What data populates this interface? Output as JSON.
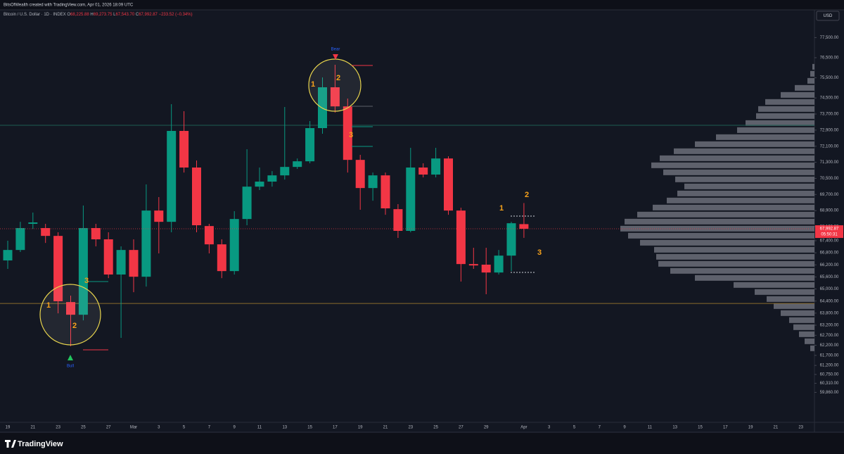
{
  "page": {
    "attribution": "BitsOfWealth created with TradingView.com, Apr 01, 2026 18:09 UTC",
    "brand": "TradingView",
    "currency": "USD"
  },
  "chart_data": {
    "type": "candlestick",
    "title": "Bitcoin / U.S. Dollar · 1D · INDEX",
    "legend_values": [
      {
        "key": "O",
        "value": "68,225.88"
      },
      {
        "key": "H",
        "value": "69,273.75"
      },
      {
        "key": "L",
        "value": "67,543.70"
      },
      {
        "key": "C",
        "value": "67,992.87"
      }
    ],
    "change": "−233.52 (−0.34%)",
    "categories": [
      "19",
      null,
      "21",
      null,
      "23",
      null,
      "25",
      null,
      "27",
      null,
      "Mar",
      null,
      "3",
      null,
      "5",
      null,
      "7",
      null,
      "9",
      null,
      "11",
      null,
      "13",
      null,
      "15",
      null,
      "17",
      null,
      "19",
      null,
      "21",
      null,
      "23",
      null,
      "25",
      null,
      "27",
      null,
      "29",
      null,
      null,
      "Apr",
      null,
      "3",
      null,
      "5",
      null,
      "7",
      null,
      "9",
      null,
      "11",
      null,
      "13",
      null,
      "15",
      null,
      "17",
      null,
      "19",
      null,
      "21",
      null,
      "23"
    ],
    "open": [
      66420,
      66940,
      68240,
      68030,
      67640,
      64350,
      63720,
      68030,
      67470,
      65720,
      66940,
      65610,
      68900,
      68340,
      72860,
      71040,
      68130,
      67220,
      65890,
      68480,
      70090,
      70340,
      70650,
      71070,
      71350,
      73000,
      75030,
      74080,
      71420,
      70020,
      70650,
      68970,
      67890,
      71040,
      70690,
      71490,
      68900,
      66240,
      66210,
      65820,
      66660,
      68225.88,
      null,
      null,
      null,
      null,
      null,
      null,
      null,
      null,
      null,
      null,
      null,
      null,
      null,
      null,
      null,
      null,
      null,
      null,
      null,
      null,
      null,
      null
    ],
    "high": [
      67400,
      68340,
      68800,
      68240,
      67820,
      64670,
      69150,
      68240,
      67820,
      67120,
      67470,
      70200,
      69570,
      74190,
      73840,
      71390,
      68240,
      67470,
      68870,
      71950,
      71040,
      70860,
      74050,
      71490,
      73350,
      75520,
      76150,
      74470,
      71670,
      70790,
      70790,
      69220,
      72020,
      71250,
      72020,
      71600,
      69040,
      67050,
      67050,
      66940,
      68340,
      69273.75,
      null,
      null,
      null,
      null,
      null,
      null,
      null,
      null,
      null,
      null,
      null,
      null,
      null,
      null,
      null,
      null,
      null,
      null,
      null,
      null,
      null,
      null
    ],
    "low": [
      66000,
      66840,
      67990,
      67290,
      63790,
      62150,
      63440,
      67120,
      65540,
      62570,
      64840,
      65120,
      66770,
      67820,
      70790,
      67820,
      66770,
      65540,
      65720,
      68170,
      69920,
      70090,
      70440,
      70970,
      71250,
      72720,
      73770,
      70790,
      68940,
      69390,
      68690,
      67540,
      67820,
      70550,
      70550,
      68690,
      65370,
      66000,
      64740,
      65720,
      65890,
      67543.7,
      null,
      null,
      null,
      null,
      null,
      null,
      null,
      null,
      null,
      null,
      null,
      null,
      null,
      null,
      null,
      null,
      null,
      null,
      null,
      null,
      null,
      null
    ],
    "close": [
      66940,
      68030,
      68310,
      67640,
      64390,
      63720,
      68030,
      67470,
      65720,
      66940,
      65610,
      68900,
      68340,
      72860,
      71040,
      68170,
      67220,
      65890,
      68480,
      70090,
      70340,
      70650,
      71070,
      71350,
      73000,
      75030,
      74080,
      71420,
      70020,
      70650,
      69010,
      67890,
      71040,
      70690,
      71490,
      68900,
      66240,
      66170,
      65820,
      66660,
      68270,
      67992.87,
      null,
      null,
      null,
      null,
      null,
      null,
      null,
      null,
      null,
      null,
      null,
      null,
      null,
      null,
      null,
      null,
      null,
      null,
      null,
      null,
      null,
      null
    ],
    "up_color": "#089981",
    "down_color": "#f23645",
    "ylim": [
      58370,
      78880
    ],
    "yticks": [
      {
        "value": 77500,
        "label": "77,500.00"
      },
      {
        "value": 76500,
        "label": "76,500.00"
      },
      {
        "value": 75500,
        "label": "75,500.00"
      },
      {
        "value": 74500,
        "label": "74,500.00"
      },
      {
        "value": 73700,
        "label": "73,700.00"
      },
      {
        "value": 72900,
        "label": "72,900.00"
      },
      {
        "value": 72100,
        "label": "72,100.00"
      },
      {
        "value": 71300,
        "label": "71,300.00"
      },
      {
        "value": 70500,
        "label": "70,500.00"
      },
      {
        "value": 69700,
        "label": "69,700.00"
      },
      {
        "value": 68900,
        "label": "68,900.00"
      },
      {
        "value": 68100,
        "label": "68,100.00"
      },
      {
        "value": 67400,
        "label": "67,400.00"
      },
      {
        "value": 66800,
        "label": "66,800.00"
      },
      {
        "value": 66200,
        "label": "66,200.00"
      },
      {
        "value": 65600,
        "label": "65,600.00"
      },
      {
        "value": 65000,
        "label": "65,000.00"
      },
      {
        "value": 64400,
        "label": "64,400.00"
      },
      {
        "value": 63800,
        "label": "63,800.00"
      },
      {
        "value": 63200,
        "label": "63,200.00"
      },
      {
        "value": 62700,
        "label": "62,700.00"
      },
      {
        "value": 62200,
        "label": "62,200.00"
      },
      {
        "value": 61700,
        "label": "61,700.00"
      },
      {
        "value": 61200,
        "label": "61,200.00"
      },
      {
        "value": 60750,
        "label": "60,750.00"
      },
      {
        "value": 60310,
        "label": "60,310.00"
      },
      {
        "value": 59860,
        "label": "59,860.00"
      }
    ],
    "grid": false,
    "last_price_label": "67,992.87",
    "countdown": "05:50:31",
    "levels": [
      {
        "value": 64280,
        "color": "#8a6d2c"
      },
      {
        "value": 73140,
        "color": "#1c5d52"
      }
    ],
    "volume_profile": {
      "color": "#787b86",
      "price": [
        76050,
        75700,
        75350,
        75000,
        74650,
        74300,
        73950,
        73600,
        73250,
        72900,
        72550,
        72200,
        71850,
        71500,
        71150,
        70800,
        70450,
        70100,
        69750,
        69400,
        69050,
        68700,
        68350,
        68000,
        67650,
        67300,
        66950,
        66600,
        66250,
        65900,
        65550,
        65200,
        64850,
        64500,
        64150,
        63800,
        63450,
        63100,
        62750,
        62400,
        62050
      ],
      "volume": [
        3,
        6,
        10,
        28,
        48,
        70,
        80,
        83,
        98,
        110,
        140,
        170,
        200,
        220,
        232,
        215,
        198,
        185,
        195,
        210,
        230,
        252,
        270,
        276,
        265,
        248,
        228,
        225,
        222,
        205,
        170,
        115,
        85,
        68,
        58,
        48,
        36,
        30,
        22,
        14,
        6
      ]
    },
    "annotations": [
      "1",
      "2",
      "3",
      "Bull",
      "1",
      "2",
      "3",
      "Bear",
      "1",
      "2",
      "3"
    ]
  }
}
